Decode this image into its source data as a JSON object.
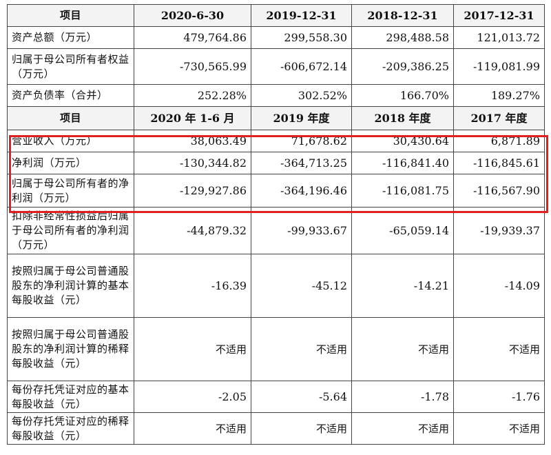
{
  "table": {
    "header1": [
      "项目",
      "2020-6-30",
      "2019-12-31",
      "2018-12-31",
      "2017-12-31"
    ],
    "balance_rows": [
      {
        "label": "资产总额（万元）",
        "values": [
          "479,764.86",
          "299,558.30",
          "298,488.58",
          "121,013.72"
        ]
      },
      {
        "label": "归属于母公司所有者权益（万元）",
        "values": [
          "-730,565.99",
          "-606,672.14",
          "-209,386.25",
          "-119,081.99"
        ]
      },
      {
        "label": "资产负债率（合并）",
        "values": [
          "252.28%",
          "302.52%",
          "166.70%",
          "189.27%"
        ]
      }
    ],
    "header2": [
      "项目",
      "2020 年 1-6 月",
      "2019 年度",
      "2018 年度",
      "2017 年度"
    ],
    "income_rows": [
      {
        "label": "营业收入（万元）",
        "values": [
          "38,063.49",
          "71,678.62",
          "30,430.64",
          "6,871.89"
        ]
      },
      {
        "label": "净利润（万元）",
        "values": [
          "-130,344.82",
          "-364,713.25",
          "-116,841.40",
          "-116,845.61"
        ]
      },
      {
        "label": "归属于母公司所有者的净利润（万元）",
        "values": [
          "-129,927.86",
          "-364,196.46",
          "-116,081.75",
          "-116,567.90"
        ]
      },
      {
        "label": "扣除非经常性损益后归属于母公司所有者的净利润（万元）",
        "values": [
          "-44,879.32",
          "-99,933.67",
          "-65,059.14",
          "-19,939.37"
        ]
      },
      {
        "label": "按照归属于母公司普通股股东的净利润计算的基本每股收益（元）",
        "values": [
          "-16.39",
          "-45.12",
          "-14.21",
          "-14.09"
        ]
      },
      {
        "label": "按照归属于母公司普通股股东的净利润计算的稀释每股收益（元）",
        "values": [
          "不适用",
          "不适用",
          "不适用",
          "不适用"
        ]
      },
      {
        "label": "每份存托凭证对应的基本每股收益（元）",
        "values": [
          "-2.05",
          "-5.64",
          "-1.78",
          "-1.76"
        ]
      },
      {
        "label": "每份存托凭证对应的稀释每股收益（元）",
        "values": [
          "不适用",
          "不适用",
          "不适用",
          "不适用"
        ]
      }
    ]
  },
  "highlight_color": "#e02020"
}
